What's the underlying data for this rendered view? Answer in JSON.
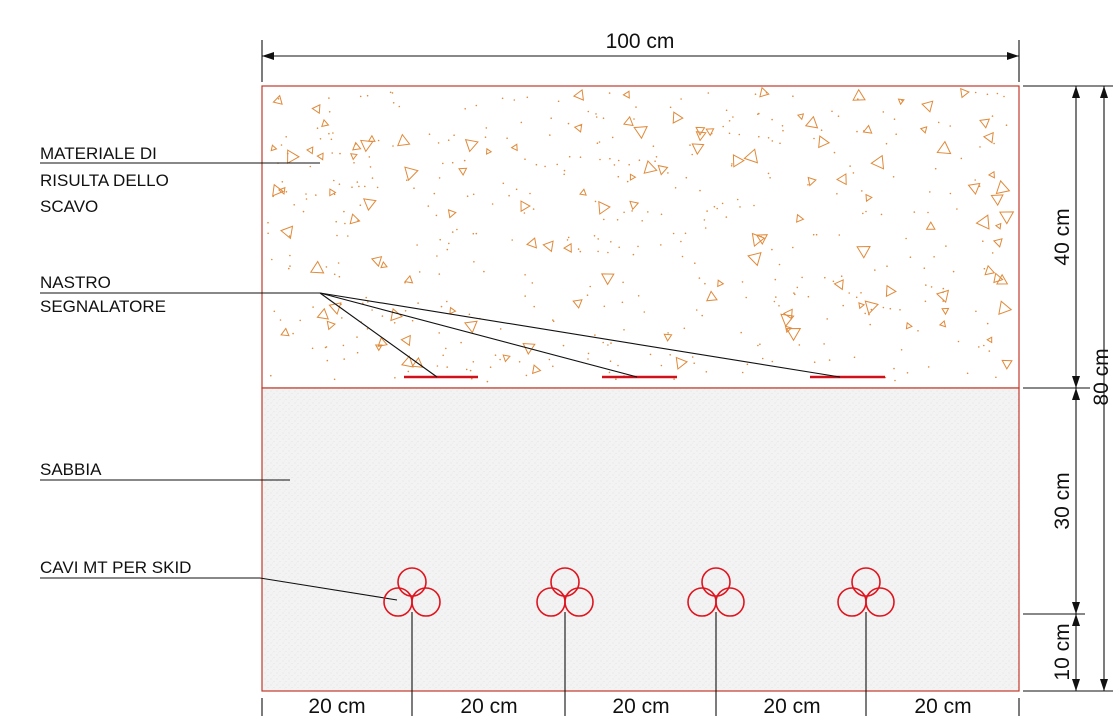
{
  "labels": {
    "fill_material_line1": "MATERIALE DI",
    "fill_material_line2": "RISULTA DELLO",
    "fill_material_line3": "SCAVO",
    "tape_line1": "NASTRO",
    "tape_line2": "SEGNALATORE",
    "sand": "SABBIA",
    "cables": "CAVI MT PER SKID"
  },
  "dimensions": {
    "total_width": "100 cm",
    "upper_layer_height": "40 cm",
    "total_height": "80 cm",
    "sand_layer_height": "30 cm",
    "bottom_layer_height": "10 cm",
    "spacing": [
      "20 cm",
      "20 cm",
      "20 cm",
      "20 cm",
      "20 cm"
    ]
  },
  "colors": {
    "outline": "#c0392b",
    "cable": "#e0141e",
    "tape": "#d0101a",
    "aggregate": "#e08a3a",
    "sand": "#f2f2f2",
    "line": "#111111"
  },
  "cable_groups": 4,
  "tape_count": 3
}
